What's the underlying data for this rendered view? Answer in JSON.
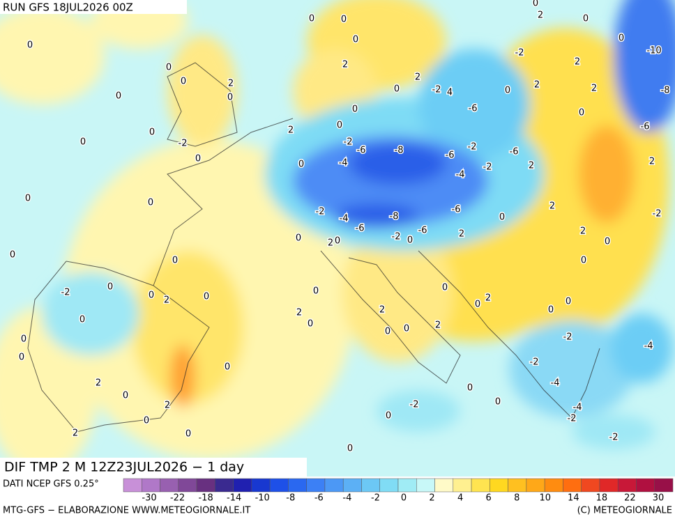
{
  "header": {
    "run": "RUN GFS 18JUL2026 00Z",
    "title": "DIF TMP 2 M 12Z23JUL2026 − 1 day"
  },
  "footer": {
    "source": "DATI NCEP GFS 0.25°",
    "credit": "MTG-GFS − ELABORAZIONE WWW.METEOGIORNALE.IT",
    "copyright": "(C) METEOGIORNALE"
  },
  "legend": {
    "colors": [
      "#c890d8",
      "#b078c8",
      "#9860b0",
      "#804898",
      "#683080",
      "#3a2a90",
      "#2020b0",
      "#1838d0",
      "#1e50e8",
      "#2a68f0",
      "#3c80f5",
      "#4c98f5",
      "#5cb0f5",
      "#6cc8f5",
      "#80dcf5",
      "#a0ecf5",
      "#c8f8f8",
      "#fffac8",
      "#fff090",
      "#ffe450",
      "#ffd820",
      "#ffc020",
      "#ffa818",
      "#ff8c10",
      "#ff6e10",
      "#f04820",
      "#e02828",
      "#c81838",
      "#b01040",
      "#981048"
    ],
    "ticks": [
      -30,
      -22,
      -18,
      -14,
      -10,
      -8,
      -6,
      -4,
      -2,
      0,
      2,
      4,
      6,
      8,
      10,
      14,
      18,
      22,
      30
    ]
  },
  "map_labels": [
    0,
    0,
    0,
    0,
    2,
    0,
    0,
    2,
    0,
    0,
    0,
    0,
    -2,
    0,
    2,
    0,
    0,
    0,
    2,
    -2,
    4,
    -6,
    0,
    2,
    2,
    -2,
    0,
    2,
    0,
    0,
    -10,
    -8,
    -6,
    2,
    0,
    -2,
    -6,
    -8,
    -4,
    0,
    -6,
    -2,
    -6,
    -2,
    -4,
    2,
    2,
    0,
    0,
    -2,
    -4,
    -8,
    -6,
    2,
    -2,
    -6,
    -6,
    0,
    0,
    2,
    0,
    -2,
    0,
    2,
    2,
    0,
    0,
    0,
    0,
    -2,
    0,
    0,
    2,
    0,
    0,
    0,
    0,
    2,
    0,
    0,
    0,
    2,
    0,
    2,
    0,
    0,
    2,
    0,
    0,
    -2,
    -4,
    -2,
    0,
    2,
    0,
    -4,
    0,
    0,
    -2,
    2,
    -4,
    -2,
    0,
    0,
    2,
    0,
    -2,
    0
  ]
}
